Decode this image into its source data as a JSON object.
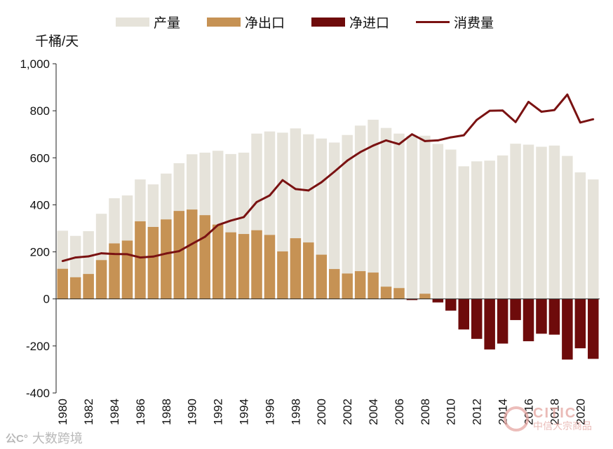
{
  "chart_data": {
    "type": "bar",
    "title": "",
    "ylabel": "千桶/天",
    "xlabel": "",
    "ylim": [
      -400,
      1000
    ],
    "yticks": [
      -400,
      -200,
      0,
      200,
      400,
      600,
      800,
      1000
    ],
    "ytick_labels": [
      "-400",
      "-200",
      "0",
      "200",
      "400",
      "600",
      "800",
      "1,000"
    ],
    "categories": [
      "1980",
      "1981",
      "1982",
      "1983",
      "1984",
      "1985",
      "1986",
      "1987",
      "1988",
      "1989",
      "1990",
      "1991",
      "1992",
      "1993",
      "1994",
      "1995",
      "1996",
      "1997",
      "1998",
      "1999",
      "2000",
      "2001",
      "2002",
      "2003",
      "2004",
      "2005",
      "2006",
      "2007",
      "2008",
      "2009",
      "2010",
      "2011",
      "2012",
      "2013",
      "2014",
      "2015",
      "2016",
      "2017",
      "2018",
      "2019",
      "2020",
      "2021"
    ],
    "xtick_labels": [
      "1980",
      "1982",
      "1984",
      "1986",
      "1988",
      "1990",
      "1992",
      "1994",
      "1996",
      "1998",
      "2000",
      "2002",
      "2004",
      "2006",
      "2008",
      "2010",
      "2012",
      "2014",
      "2016",
      "2018",
      "2020"
    ],
    "series": [
      {
        "name": "产量",
        "kind": "bar",
        "color": "#e6e3da",
        "values": [
          290,
          268,
          288,
          362,
          428,
          440,
          508,
          487,
          533,
          577,
          615,
          622,
          630,
          616,
          622,
          703,
          712,
          707,
          725,
          700,
          682,
          665,
          697,
          737,
          762,
          727,
          703,
          694,
          694,
          659,
          635,
          564,
          585,
          588,
          610,
          660,
          656,
          647,
          652,
          608,
          538,
          508
        ]
      },
      {
        "name": "净出口",
        "kind": "bar",
        "color": "#c69254",
        "values": [
          128,
          92,
          106,
          165,
          236,
          248,
          330,
          306,
          338,
          374,
          380,
          356,
          316,
          283,
          276,
          292,
          272,
          202,
          258,
          240,
          188,
          127,
          108,
          118,
          112,
          52,
          46,
          0,
          22,
          0,
          0,
          0,
          0,
          0,
          0,
          0,
          0,
          0,
          0,
          0,
          0,
          0
        ]
      },
      {
        "name": "净进口",
        "kind": "bar",
        "color": "#6e0b0b",
        "values": [
          0,
          0,
          0,
          0,
          0,
          0,
          0,
          0,
          0,
          0,
          0,
          0,
          0,
          0,
          0,
          0,
          0,
          0,
          0,
          0,
          0,
          0,
          0,
          0,
          0,
          0,
          0,
          -5,
          0,
          -15,
          -50,
          -130,
          -170,
          -215,
          -190,
          -90,
          -180,
          -148,
          -152,
          -258,
          -210,
          -255
        ]
      },
      {
        "name": "消费量",
        "kind": "line",
        "color": "#7a1212",
        "values": [
          161,
          176,
          181,
          194,
          191,
          190,
          176,
          180,
          193,
          203,
          234,
          264,
          314,
          333,
          348,
          412,
          440,
          505,
          467,
          461,
          496,
          541,
          588,
          624,
          652,
          674,
          658,
          700,
          671,
          674,
          687,
          696,
          761,
          800,
          801,
          752,
          838,
          796,
          803,
          869,
          750,
          764
        ]
      }
    ]
  },
  "legend": {
    "items": [
      {
        "label": "产量",
        "color": "#e6e3da"
      },
      {
        "label": "净出口",
        "color": "#c69254"
      },
      {
        "label": "净进口",
        "color": "#6e0b0b"
      },
      {
        "label": "消费量",
        "color": "#7a1212"
      }
    ]
  },
  "watermark": {
    "left_text": "大数跨境",
    "left_icon": "公C°",
    "right_en": "CITIC",
    "right_cn": "中信大宗商品"
  }
}
